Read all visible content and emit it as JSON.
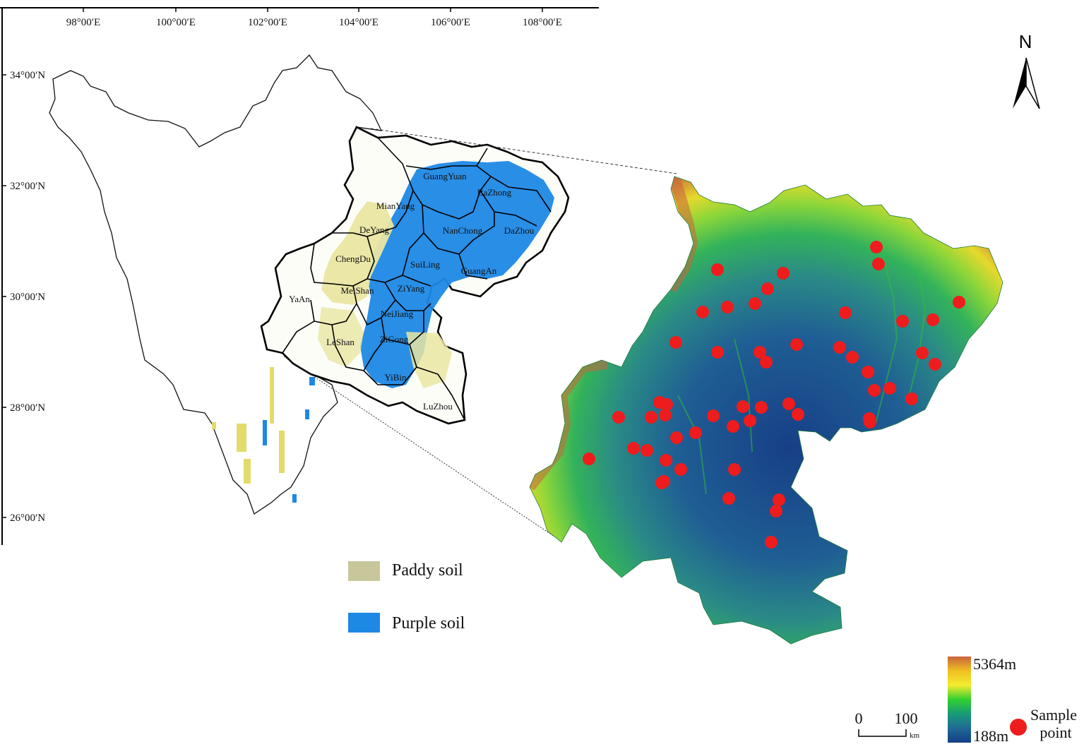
{
  "graticule": {
    "longitudes": [
      "98°00′E",
      "100°00′E",
      "102°00′E",
      "104°00′E",
      "106°00′E",
      "108°00′E"
    ],
    "latitudes": [
      "34°00′N",
      "32°00′N",
      "30°00′N",
      "28°00′N",
      "26°00′N"
    ]
  },
  "north_arrow": {
    "label": "N"
  },
  "cities": [
    {
      "name": "GuangYuan"
    },
    {
      "name": "BaZhong"
    },
    {
      "name": "MianYang"
    },
    {
      "name": "DeYang"
    },
    {
      "name": "NanChong"
    },
    {
      "name": "DaZhou"
    },
    {
      "name": "ChengDu"
    },
    {
      "name": "SuiLing"
    },
    {
      "name": "GuangAn"
    },
    {
      "name": "MeiShan"
    },
    {
      "name": "ZiYang"
    },
    {
      "name": "YaAn"
    },
    {
      "name": "NeiJiang"
    },
    {
      "name": "ZiGong"
    },
    {
      "name": "LeShan"
    },
    {
      "name": "YiBin"
    },
    {
      "name": "LuZhou"
    }
  ],
  "soil_legend": [
    {
      "label": "Paddy soil",
      "color": "#c8c79c"
    },
    {
      "label": "Purple soil",
      "color": "#1e88e5"
    }
  ],
  "elevation_legend": {
    "max_label": "5364m",
    "min_label": "188m",
    "colors": [
      "#c8643c",
      "#f0c020",
      "#f4ec30",
      "#30d030",
      "#189a78",
      "#206a96",
      "#143e86"
    ]
  },
  "scale_bar": {
    "start": "0",
    "end": "100",
    "unit": "km"
  },
  "sample_legend": {
    "label_line1": "Sample",
    "label_line2": "point",
    "color": "#ee1c1c"
  },
  "colors": {
    "paddy": "#e9e6a2",
    "purple": "#1e88e5",
    "sample": "#ee1c1c",
    "relief_high": "#c8643c",
    "relief_mid": "#2fc52f",
    "relief_low": "#1d5a8c"
  }
}
